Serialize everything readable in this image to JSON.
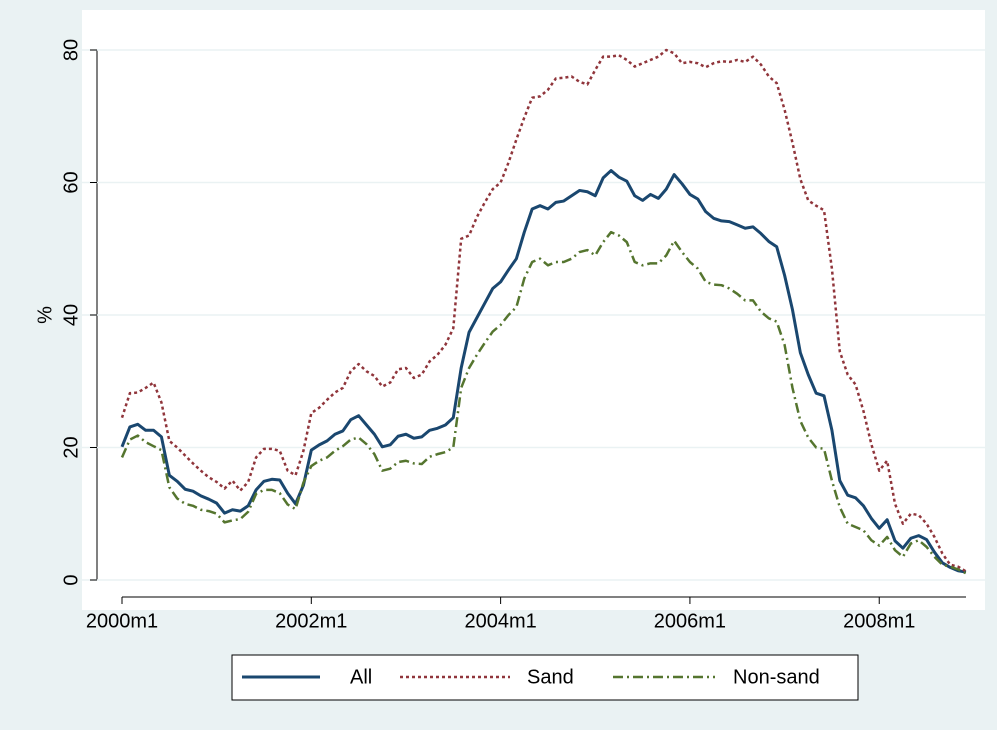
{
  "chart_data": {
    "type": "line",
    "ylabel": "%",
    "x": [
      "2000m1",
      "2000m2",
      "2000m3",
      "2000m4",
      "2000m5",
      "2000m6",
      "2000m7",
      "2000m8",
      "2000m9",
      "2000m10",
      "2000m11",
      "2000m12",
      "2001m1",
      "2001m2",
      "2001m3",
      "2001m4",
      "2001m5",
      "2001m6",
      "2001m7",
      "2001m8",
      "2001m9",
      "2001m10",
      "2001m11",
      "2001m12",
      "2002m1",
      "2002m2",
      "2002m3",
      "2002m4",
      "2002m5",
      "2002m6",
      "2002m7",
      "2002m8",
      "2002m9",
      "2002m10",
      "2002m11",
      "2002m12",
      "2003m1",
      "2003m2",
      "2003m3",
      "2003m4",
      "2003m5",
      "2003m6",
      "2003m7",
      "2003m8",
      "2003m9",
      "2003m10",
      "2003m11",
      "2003m12",
      "2004m1",
      "2004m2",
      "2004m3",
      "2004m4",
      "2004m5",
      "2004m6",
      "2004m7",
      "2004m8",
      "2004m9",
      "2004m10",
      "2004m11",
      "2004m12",
      "2005m1",
      "2005m2",
      "2005m3",
      "2005m4",
      "2005m5",
      "2005m6",
      "2005m7",
      "2005m8",
      "2005m9",
      "2005m10",
      "2005m11",
      "2005m12",
      "2006m1",
      "2006m2",
      "2006m3",
      "2006m4",
      "2006m5",
      "2006m6",
      "2006m7",
      "2006m8",
      "2006m9",
      "2006m10",
      "2006m11",
      "2006m12",
      "2007m1",
      "2007m2",
      "2007m3",
      "2007m4",
      "2007m5",
      "2007m6",
      "2007m7",
      "2007m8",
      "2007m9",
      "2007m10",
      "2007m11",
      "2007m12",
      "2008m1",
      "2008m2",
      "2008m3",
      "2008m4",
      "2008m5",
      "2008m6",
      "2008m7",
      "2008m8",
      "2008m9",
      "2008m10",
      "2008m11",
      "2008m12"
    ],
    "series": [
      {
        "name": "All",
        "color": "#1a476f",
        "values": [
          20.1,
          23.1,
          23.5,
          22.6,
          22.6,
          21.6,
          15.8,
          14.9,
          13.7,
          13.4,
          12.7,
          12.2,
          11.6,
          10.1,
          10.6,
          10.4,
          11.2,
          13.6,
          14.9,
          15.2,
          15.1,
          13.1,
          11.5,
          14.3,
          19.6,
          20.4,
          21.0,
          22.0,
          22.5,
          24.2,
          24.8,
          23.4,
          22.0,
          20.1,
          20.4,
          21.7,
          22.0,
          21.4,
          21.6,
          22.6,
          22.9,
          23.4,
          24.5,
          32.0,
          37.4,
          39.6,
          41.8,
          44.0,
          45.0,
          46.8,
          48.5,
          52.5,
          56.0,
          56.5,
          56.0,
          57.0,
          57.2,
          58.0,
          58.8,
          58.6,
          58.0,
          60.7,
          61.8,
          60.8,
          60.2,
          58.0,
          57.3,
          58.2,
          57.6,
          59.0,
          61.2,
          59.8,
          58.2,
          57.5,
          55.6,
          54.6,
          54.2,
          54.1,
          53.6,
          53.1,
          53.3,
          52.3,
          51.1,
          50.3,
          46.0,
          40.8,
          34.3,
          31.0,
          28.2,
          27.8,
          22.6,
          15.0,
          12.8,
          12.4,
          11.2,
          9.3,
          7.8,
          9.1,
          5.9,
          4.8,
          6.3,
          6.7,
          6.1,
          4.2,
          2.6,
          1.9,
          1.4,
          1.2
        ]
      },
      {
        "name": "Sand",
        "color": "#90353b",
        "values": [
          24.5,
          28.2,
          28.3,
          29.0,
          29.8,
          26.8,
          21.0,
          20.0,
          18.8,
          17.6,
          16.5,
          15.5,
          14.8,
          13.8,
          15.0,
          13.5,
          14.8,
          18.5,
          19.8,
          19.8,
          19.5,
          16.5,
          15.8,
          19.5,
          25.2,
          26.0,
          27.2,
          28.3,
          29.0,
          31.5,
          32.6,
          31.5,
          30.8,
          29.2,
          29.8,
          31.8,
          32.0,
          30.5,
          31.0,
          33.0,
          34.0,
          35.5,
          38.0,
          51.5,
          52.0,
          54.8,
          57.0,
          59.0,
          60.0,
          63.0,
          66.5,
          69.8,
          72.8,
          73.0,
          74.0,
          75.7,
          75.8,
          76.0,
          75.2,
          74.8,
          77.0,
          79.0,
          79.0,
          79.2,
          78.5,
          77.5,
          78.0,
          78.5,
          79.0,
          80.0,
          79.5,
          78.0,
          78.2,
          78.0,
          77.4,
          78.0,
          78.3,
          78.2,
          78.5,
          78.2,
          79.0,
          77.8,
          76.0,
          75.0,
          71.0,
          66.0,
          60.5,
          57.3,
          56.5,
          55.8,
          47.0,
          34.5,
          31.0,
          29.5,
          25.5,
          20.5,
          16.5,
          18.0,
          11.5,
          8.5,
          10.0,
          9.8,
          8.5,
          6.5,
          4.0,
          2.3,
          2.0,
          1.3
        ]
      },
      {
        "name": "Non-sand",
        "color": "#55752f",
        "values": [
          18.5,
          21.2,
          21.8,
          20.8,
          20.2,
          19.6,
          14.0,
          12.3,
          11.5,
          11.2,
          10.6,
          10.4,
          10.0,
          8.7,
          9.0,
          9.2,
          10.3,
          13.0,
          13.6,
          13.6,
          13.1,
          11.4,
          10.7,
          14.7,
          17.2,
          18.0,
          18.5,
          19.5,
          20.2,
          21.2,
          21.5,
          20.5,
          19.0,
          16.5,
          16.8,
          17.8,
          18.0,
          17.6,
          17.5,
          18.6,
          19.0,
          19.3,
          20.0,
          29.0,
          32.0,
          34.0,
          35.8,
          37.5,
          38.5,
          40.0,
          41.2,
          45.5,
          48.0,
          48.5,
          47.5,
          48.0,
          48.0,
          48.5,
          49.5,
          49.8,
          49.0,
          51.0,
          52.5,
          52.0,
          51.0,
          48.0,
          47.5,
          47.8,
          47.8,
          49.0,
          51.2,
          49.5,
          48.0,
          47.0,
          45.0,
          44.6,
          44.5,
          44.0,
          43.2,
          42.2,
          42.2,
          40.5,
          39.5,
          39.0,
          35.5,
          29.0,
          24.0,
          21.5,
          20.0,
          19.8,
          15.0,
          11.0,
          8.5,
          8.0,
          7.5,
          6.0,
          5.2,
          6.5,
          4.5,
          3.5,
          5.5,
          6.0,
          5.0,
          3.5,
          2.3,
          2.0,
          1.6,
          1.0
        ]
      }
    ],
    "xlim": [
      "2000m1",
      "2008m12"
    ],
    "xticks": [
      "2000m1",
      "2002m1",
      "2004m1",
      "2006m1",
      "2008m1"
    ],
    "ylim": [
      0,
      80
    ],
    "yticks": [
      0,
      20,
      40,
      60,
      80
    ],
    "grid": true,
    "legend": "bottom"
  }
}
